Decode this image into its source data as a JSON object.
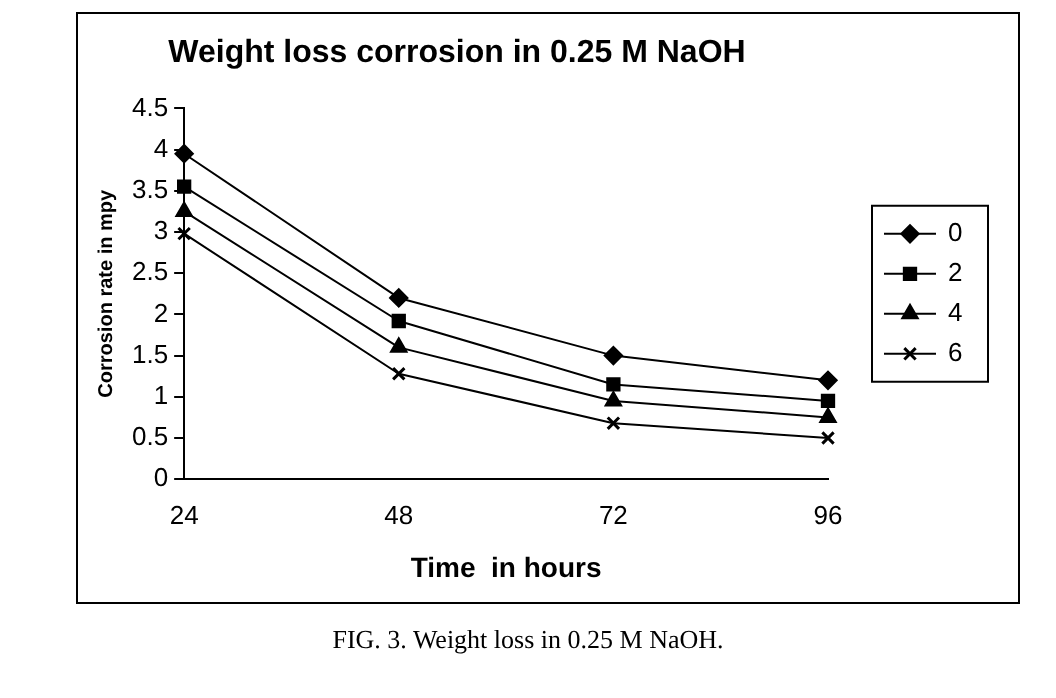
{
  "chart_data": {
    "type": "line",
    "title": "Weight loss corrosion in 0.25 M NaOH",
    "xlabel": "Time  in hours",
    "ylabel": "Corrosion rate in mpy",
    "categories": [
      "24",
      "48",
      "72",
      "96"
    ],
    "series": [
      {
        "name": "0",
        "color": "#000000",
        "marker": "diamond",
        "values": [
          3.95,
          2.2,
          1.5,
          1.2
        ]
      },
      {
        "name": "2",
        "color": "#000000",
        "marker": "square",
        "values": [
          3.55,
          1.92,
          1.15,
          0.95
        ]
      },
      {
        "name": "4",
        "color": "#000000",
        "marker": "triangle",
        "values": [
          3.25,
          1.6,
          0.95,
          0.75
        ]
      },
      {
        "name": "6",
        "color": "#000000",
        "marker": "cross",
        "values": [
          2.98,
          1.28,
          0.68,
          0.5
        ]
      }
    ],
    "ylim": [
      0,
      4.5
    ],
    "yticks": [
      0,
      0.5,
      1,
      1.5,
      2,
      2.5,
      3,
      3.5,
      4,
      4.5
    ],
    "grid": false,
    "legend": "right",
    "line_style": "solid",
    "annotations": [
      "FIG. 3. Weight loss in 0.25 M NaOH."
    ]
  }
}
